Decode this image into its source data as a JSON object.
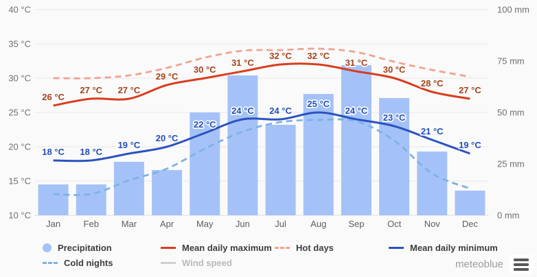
{
  "chart_data": {
    "type": "mixed",
    "categories": [
      "Jan",
      "Feb",
      "Mar",
      "Apr",
      "May",
      "Jun",
      "Jul",
      "Aug",
      "Sep",
      "Oct",
      "Nov",
      "Dec"
    ],
    "left_axis": {
      "unit": "°C",
      "min": 10,
      "max": 40,
      "step": 5,
      "tick_labels": [
        "40 °C",
        "35 °C",
        "30 °C",
        "25 °C",
        "20 °C",
        "15 °C",
        "10 °C"
      ],
      "tick_values": [
        40,
        35,
        30,
        25,
        20,
        15,
        10
      ]
    },
    "right_axis": {
      "unit": "mm",
      "min": 0,
      "max": 100,
      "step": 25,
      "tick_labels": [
        "100 mm",
        "75 mm",
        "50 mm",
        "25 mm",
        "0 mm"
      ],
      "tick_values": [
        100,
        75,
        50,
        25,
        0
      ]
    },
    "series": [
      {
        "name": "Precipitation",
        "kind": "bar",
        "axis": "right",
        "unit": "mm",
        "color": "#a5c2f8",
        "values": [
          15,
          15,
          26,
          22,
          50,
          68,
          44,
          59,
          73,
          57,
          31,
          12
        ]
      },
      {
        "name": "Hot days",
        "kind": "line",
        "dashed": true,
        "axis": "left",
        "unit": "°C",
        "color": "#f2a28f",
        "values": [
          30,
          30,
          30.4,
          31.5,
          33,
          34,
          34.1,
          34.3,
          33.8,
          32.4,
          31.2,
          30.2
        ]
      },
      {
        "name": "Cold nights",
        "kind": "line",
        "dashed": true,
        "axis": "left",
        "unit": "°C",
        "color": "#7db2e4",
        "values": [
          13.1,
          13.1,
          15.1,
          16.8,
          19.7,
          22.2,
          23.6,
          23.9,
          23.7,
          20.9,
          16.1,
          13.9
        ]
      },
      {
        "name": "Mean daily maximum",
        "kind": "line",
        "dashed": false,
        "axis": "left",
        "unit": "°C",
        "color": "#d93c1d",
        "label_color": "#a5431c",
        "values": [
          26,
          27,
          27,
          29,
          30,
          31,
          32,
          32,
          31,
          30,
          28,
          27
        ],
        "point_labels": [
          "26 °C",
          "27 °C",
          "27 °C",
          "29 °C",
          "30 °C",
          "31 °C",
          "32 °C",
          "32 °C",
          "31 °C",
          "30 °C",
          "28 °C",
          "27 °C"
        ]
      },
      {
        "name": "Mean daily minimum",
        "kind": "line",
        "dashed": false,
        "axis": "left",
        "unit": "°C",
        "color": "#2b52c2",
        "label_color": "#2150b8",
        "values": [
          18,
          18,
          19,
          20,
          22,
          24,
          24,
          25,
          24,
          23,
          21,
          19
        ],
        "point_labels": [
          "18 °C",
          "18 °C",
          "19 °C",
          "20 °C",
          "22 °C",
          "24 °C",
          "24 °C",
          "25 °C",
          "24 °C",
          "23 °C",
          "21 °C",
          "19 °C"
        ]
      },
      {
        "name": "Wind speed",
        "kind": "line",
        "dashed": false,
        "hidden": true,
        "color": "#cfcfcf",
        "values": []
      }
    ],
    "grid": true,
    "legend_position": "bottom"
  },
  "legend": {
    "rows": [
      [
        "Precipitation",
        "Mean daily maximum",
        "Hot days",
        "Mean daily minimum"
      ],
      [
        "Cold nights",
        "Wind speed"
      ]
    ]
  },
  "branding": {
    "logo_text": "meteoblue"
  }
}
